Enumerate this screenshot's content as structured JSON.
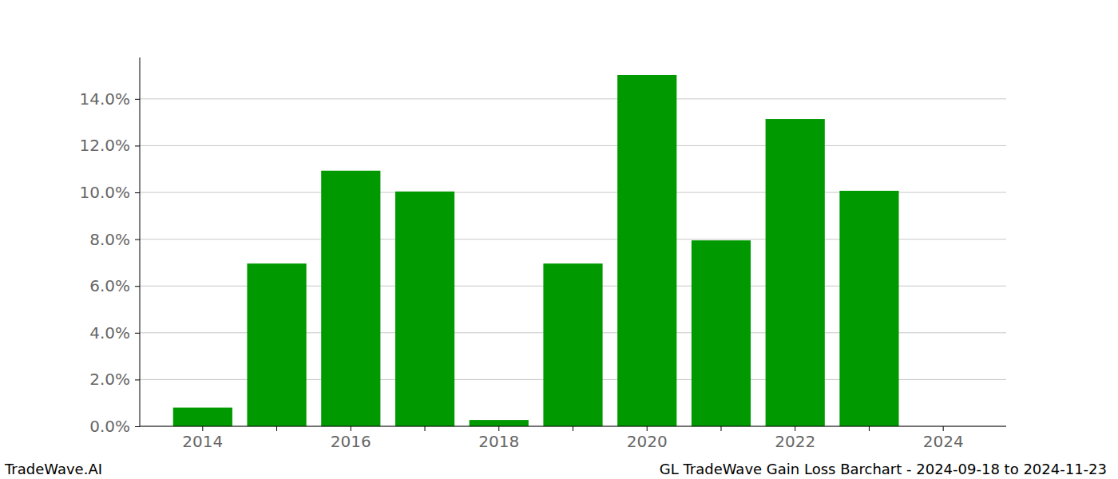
{
  "chart_data": {
    "type": "bar",
    "categories": [
      "2014",
      null,
      "2016",
      null,
      "2018",
      null,
      "2020",
      null,
      "2022",
      null,
      "2024"
    ],
    "values": [
      0.8,
      6.96,
      10.93,
      10.04,
      0.27,
      6.96,
      15.02,
      7.95,
      13.14,
      10.07,
      null
    ],
    "color": "#009900",
    "ylim": [
      0,
      15.77
    ],
    "yticks": [
      {
        "value": 0,
        "label": "0.0%"
      },
      {
        "value": 2,
        "label": "2.0%"
      },
      {
        "value": 4,
        "label": "4.0%"
      },
      {
        "value": 6,
        "label": "6.0%"
      },
      {
        "value": 8,
        "label": "8.0%"
      },
      {
        "value": 10,
        "label": "10.0%"
      },
      {
        "value": 12,
        "label": "12.0%"
      },
      {
        "value": 14,
        "label": "14.0%"
      }
    ],
    "grid": true,
    "annotations": [
      "TradeWave.AI",
      "GL TradeWave Gain Loss Barchart - 2024-09-18 to 2024-11-23"
    ]
  }
}
